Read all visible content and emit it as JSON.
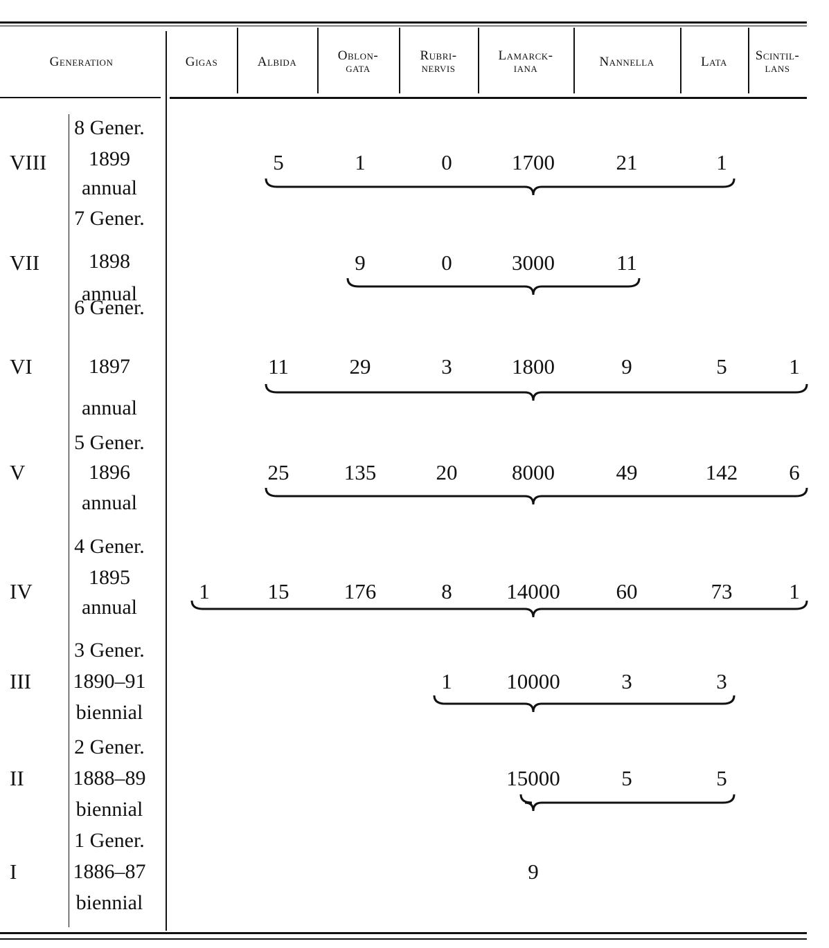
{
  "header": {
    "generation_label": "Generation",
    "columns": [
      {
        "key": "gigas",
        "label": "Gigas"
      },
      {
        "key": "albida",
        "label": "Albida"
      },
      {
        "key": "oblongata",
        "label": "Oblon-\ngata"
      },
      {
        "key": "rubrinervis",
        "label": "Rubri-\nnervis"
      },
      {
        "key": "lamarckiana",
        "label": "Lamarck-\niana"
      },
      {
        "key": "nannella",
        "label": "Nannella"
      },
      {
        "key": "lata",
        "label": "Lata"
      },
      {
        "key": "scintillans",
        "label": "Scintil-\nlans"
      }
    ]
  },
  "rows": [
    {
      "roman": "VIII",
      "generation": [
        "8 Gener.",
        "1899",
        "annual"
      ],
      "values": {
        "albida": "5",
        "oblongata": "1",
        "rubrinervis": "0",
        "lamarckiana": "1700",
        "nannella": "21",
        "lata": "1"
      },
      "brace": true
    },
    {
      "roman": "VII",
      "generation": [
        "7 Gener.",
        "1898",
        "annual"
      ],
      "values": {
        "oblongata": "9",
        "rubrinervis": "0",
        "lamarckiana": "3000",
        "nannella": "11"
      },
      "brace": true
    },
    {
      "roman": "VI",
      "generation": [
        "6 Gener.",
        "1897",
        "annual"
      ],
      "values": {
        "albida": "11",
        "oblongata": "29",
        "rubrinervis": "3",
        "lamarckiana": "1800",
        "nannella": "9",
        "lata": "5",
        "scintillans": "1"
      },
      "brace": true
    },
    {
      "roman": "V",
      "generation": [
        "5 Gener.",
        "1896",
        "annual"
      ],
      "values": {
        "albida": "25",
        "oblongata": "135",
        "rubrinervis": "20",
        "lamarckiana": "8000",
        "nannella": "49",
        "lata": "142",
        "scintillans": "6"
      },
      "brace": true
    },
    {
      "roman": "IV",
      "generation": [
        "4 Gener.",
        "1895",
        "annual"
      ],
      "values": {
        "gigas": "1",
        "albida": "15",
        "oblongata": "176",
        "rubrinervis": "8",
        "lamarckiana": "14000",
        "nannella": "60",
        "lata": "73",
        "scintillans": "1"
      },
      "brace": true
    },
    {
      "roman": "III",
      "generation": [
        "3 Gener.",
        "1890–91",
        "biennial"
      ],
      "values": {
        "rubrinervis": "1",
        "lamarckiana": "10000",
        "nannella": "3",
        "lata": "3"
      },
      "brace": true
    },
    {
      "roman": "II",
      "generation": [
        "2 Gener.",
        "1888–89",
        "biennial"
      ],
      "values": {
        "lamarckiana": "15000",
        "nannella": "5",
        "lata": "5"
      },
      "brace": true
    },
    {
      "roman": "I",
      "generation": [
        "1 Gener.",
        "1886–87",
        "biennial"
      ],
      "values": {
        "lamarckiana": "9"
      },
      "brace": false
    }
  ]
}
